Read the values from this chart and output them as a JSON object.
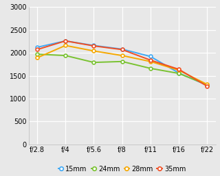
{
  "x_labels": [
    "f/2.8",
    "f/4",
    "f/5.6",
    "f/8",
    "f/11",
    "f/16",
    "f/22"
  ],
  "series": {
    "15mm": [
      2120,
      2260,
      2160,
      2080,
      1920,
      1560,
      1290
    ],
    "24mm": [
      1970,
      1940,
      1790,
      1810,
      1660,
      1550,
      1300
    ],
    "28mm": [
      1890,
      2160,
      2040,
      1940,
      1810,
      1620,
      1310
    ],
    "35mm": [
      2070,
      2260,
      2150,
      2070,
      1840,
      1640,
      1270
    ]
  },
  "colors": {
    "15mm": "#3fa9f5",
    "24mm": "#79c230",
    "28mm": "#f5a800",
    "35mm": "#f04e23"
  },
  "ylim": [
    0,
    3000
  ],
  "yticks": [
    0,
    500,
    1000,
    1500,
    2000,
    2500,
    3000
  ],
  "background_color": "#e8e8e8",
  "grid_color": "#ffffff",
  "legend_order": [
    "15mm",
    "24mm",
    "28mm",
    "35mm"
  ]
}
